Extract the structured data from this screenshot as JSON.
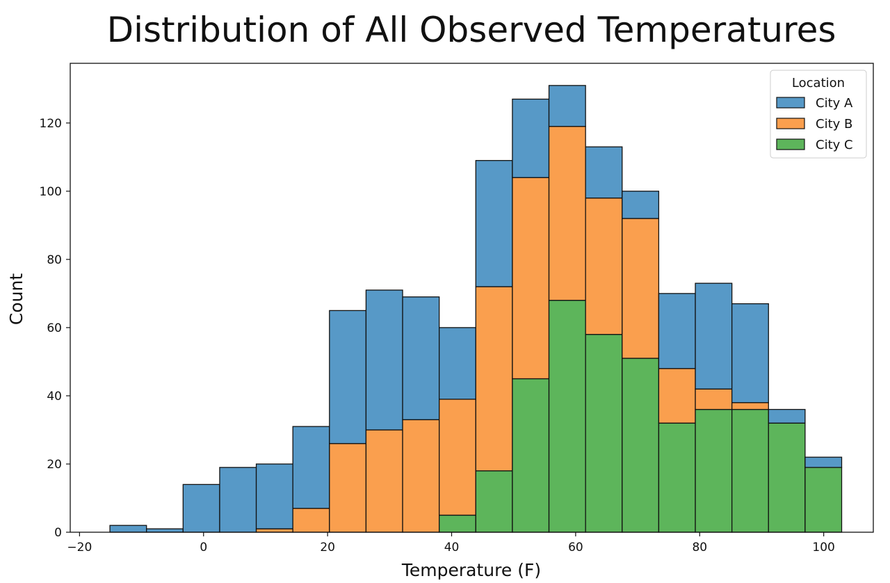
{
  "chart_data": {
    "type": "histogram",
    "stacked": true,
    "title": "Distribution of All Observed Temperatures",
    "xlabel": "Temperature (F)",
    "ylabel": "Count",
    "xlim": [
      -21.5,
      108
    ],
    "ylim": [
      0,
      137.5
    ],
    "xticks": [
      -20,
      0,
      20,
      40,
      60,
      80,
      100
    ],
    "xtick_labels": [
      "−20",
      "0",
      "20",
      "40",
      "60",
      "80",
      "100"
    ],
    "yticks": [
      0,
      20,
      40,
      60,
      80,
      100,
      120
    ],
    "ytick_labels": [
      "0",
      "20",
      "40",
      "60",
      "80",
      "100",
      "120"
    ],
    "bin_edges": [
      -15.1,
      -9.2,
      -3.3,
      2.6,
      8.5,
      14.4,
      20.3,
      26.2,
      32.1,
      38.0,
      43.9,
      49.8,
      55.7,
      61.6,
      67.5,
      73.4,
      79.3,
      85.2,
      91.1,
      97.0,
      102.9
    ],
    "grid": false,
    "legend": {
      "title": "Location",
      "position": "top-right",
      "stack_order_top_to_bottom": [
        "City A",
        "City B",
        "City C"
      ]
    },
    "series": [
      {
        "name": "City A",
        "color": "#5799c7",
        "values": [
          2,
          1,
          14,
          19,
          19,
          24,
          39,
          41,
          36,
          21,
          37,
          23,
          12,
          15,
          8,
          22,
          31,
          29,
          4,
          3
        ]
      },
      {
        "name": "City B",
        "color": "#fa9f4e",
        "values": [
          0,
          0,
          0,
          0,
          1,
          7,
          26,
          30,
          33,
          34,
          54,
          59,
          51,
          40,
          41,
          16,
          6,
          2,
          0,
          0
        ]
      },
      {
        "name": "City C",
        "color": "#5db55b",
        "values": [
          0,
          0,
          0,
          0,
          0,
          0,
          0,
          0,
          0,
          5,
          18,
          45,
          68,
          58,
          51,
          32,
          36,
          36,
          32,
          19
        ]
      }
    ]
  }
}
